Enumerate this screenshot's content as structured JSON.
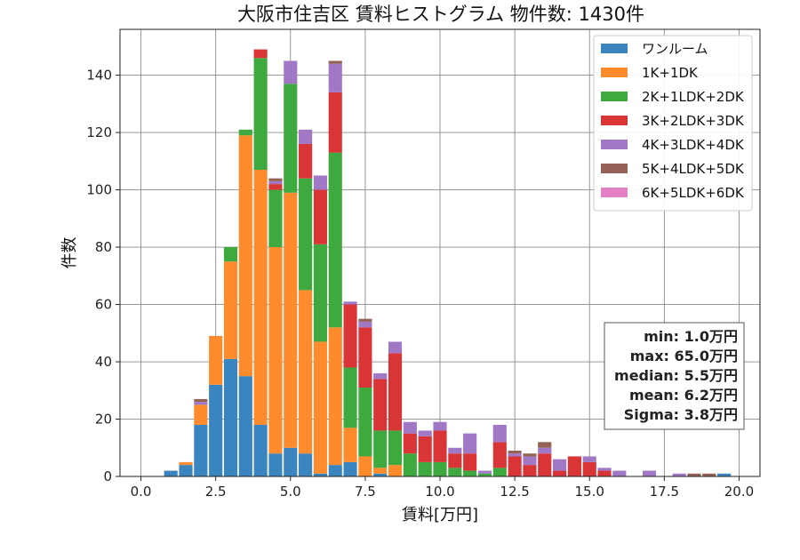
{
  "chart_data": {
    "type": "bar",
    "stacked": true,
    "title": "大阪市住吉区 賃料ヒストグラム 物件数: 1430件",
    "xlabel": "賃料[万円]",
    "ylabel": "件数",
    "xlim": [
      -0.7,
      20.7
    ],
    "ylim": [
      0,
      156
    ],
    "x_ticks": [
      0.0,
      2.5,
      5.0,
      7.5,
      10.0,
      12.5,
      15.0,
      17.5,
      20.0
    ],
    "x_tick_labels": [
      "0.0",
      "2.5",
      "5.0",
      "7.5",
      "10.0",
      "12.5",
      "15.0",
      "17.5",
      "20.0"
    ],
    "y_ticks": [
      0,
      20,
      40,
      60,
      80,
      100,
      120,
      140
    ],
    "y_tick_labels": [
      "0",
      "20",
      "40",
      "60",
      "80",
      "100",
      "120",
      "140"
    ],
    "grid": true,
    "legend_position": "top-right",
    "bin_width": 0.5,
    "x": [
      1.0,
      1.5,
      2.0,
      2.5,
      3.0,
      3.5,
      4.0,
      4.5,
      5.0,
      5.5,
      6.0,
      6.5,
      7.0,
      7.5,
      8.0,
      8.5,
      9.0,
      9.5,
      10.0,
      10.5,
      11.0,
      11.5,
      12.0,
      12.5,
      13.0,
      13.5,
      14.0,
      14.5,
      15.0,
      15.5,
      16.0,
      16.5,
      17.0,
      17.5,
      18.0,
      18.5,
      19.0,
      19.5
    ],
    "series": [
      {
        "name": "ワンルーム",
        "color": "#3a85bf",
        "values": [
          2,
          4,
          18,
          32,
          41,
          35,
          18,
          8,
          10,
          8,
          1,
          4,
          5,
          0,
          1,
          0,
          0,
          0,
          0,
          0,
          0,
          0,
          0,
          0,
          0,
          0,
          0,
          0,
          0,
          0,
          0,
          0,
          0,
          0,
          0,
          0,
          0,
          1
        ]
      },
      {
        "name": "1K+1DK",
        "color": "#ff8b2c",
        "values": [
          0,
          1,
          7,
          17,
          34,
          84,
          89,
          72,
          89,
          57,
          46,
          48,
          12,
          7,
          2,
          4,
          0,
          0,
          0,
          0,
          0,
          0,
          0,
          0,
          0,
          0,
          0,
          0,
          0,
          0,
          0,
          0,
          0,
          0,
          0,
          0,
          0,
          0
        ]
      },
      {
        "name": "2K+1LDK+2DK",
        "color": "#3ea93e",
        "values": [
          0,
          0,
          0,
          0,
          5,
          2,
          39,
          20,
          38,
          39,
          34,
          61,
          21,
          24,
          13,
          12,
          8,
          5,
          5,
          3,
          2,
          1,
          3,
          0,
          0,
          0,
          0,
          0,
          0,
          0,
          0,
          0,
          0,
          0,
          0,
          0,
          0,
          0
        ]
      },
      {
        "name": "3K+2LDK+3DK",
        "color": "#d93436",
        "values": [
          0,
          0,
          0,
          0,
          0,
          0,
          3,
          2,
          0,
          12,
          19,
          21,
          22,
          21,
          18,
          27,
          7,
          9,
          11,
          5,
          6,
          0,
          9,
          7,
          4,
          8,
          2,
          7,
          5,
          2,
          0,
          0,
          0,
          0,
          0,
          0,
          0,
          0
        ]
      },
      {
        "name": "4K+3LDK+4DK",
        "color": "#a178c6",
        "values": [
          0,
          0,
          1,
          0,
          0,
          0,
          0,
          1,
          8,
          5,
          5,
          10,
          1,
          2,
          2,
          4,
          4,
          2,
          3,
          2,
          7,
          1,
          6,
          1,
          3,
          2,
          4,
          0,
          2,
          1,
          2,
          0,
          2,
          0,
          1,
          0,
          0,
          0
        ]
      },
      {
        "name": "5K+4LDK+5DK",
        "color": "#946256",
        "values": [
          0,
          0,
          1,
          0,
          0,
          0,
          0,
          1,
          0,
          0,
          0,
          1,
          0,
          1,
          0,
          0,
          0,
          0,
          0,
          0,
          0,
          0,
          0,
          1,
          1,
          2,
          0,
          0,
          0,
          0,
          0,
          0,
          0,
          0,
          0,
          1,
          1,
          0
        ]
      },
      {
        "name": "6K+5LDK+6DK",
        "color": "#e380c6",
        "values": [
          0,
          0,
          0,
          0,
          0,
          0,
          0,
          0,
          0,
          0,
          0,
          0,
          0,
          0,
          0,
          0,
          0,
          0,
          0,
          0,
          0,
          0,
          0,
          0,
          0,
          0,
          0,
          0,
          0,
          0,
          0,
          0,
          0,
          0,
          0,
          0,
          0,
          0
        ]
      }
    ],
    "stats": [
      "min: 1.0万円",
      "max: 65.0万円",
      "median: 5.5万円",
      "mean: 6.2万円",
      "Sigma: 3.8万円"
    ]
  }
}
